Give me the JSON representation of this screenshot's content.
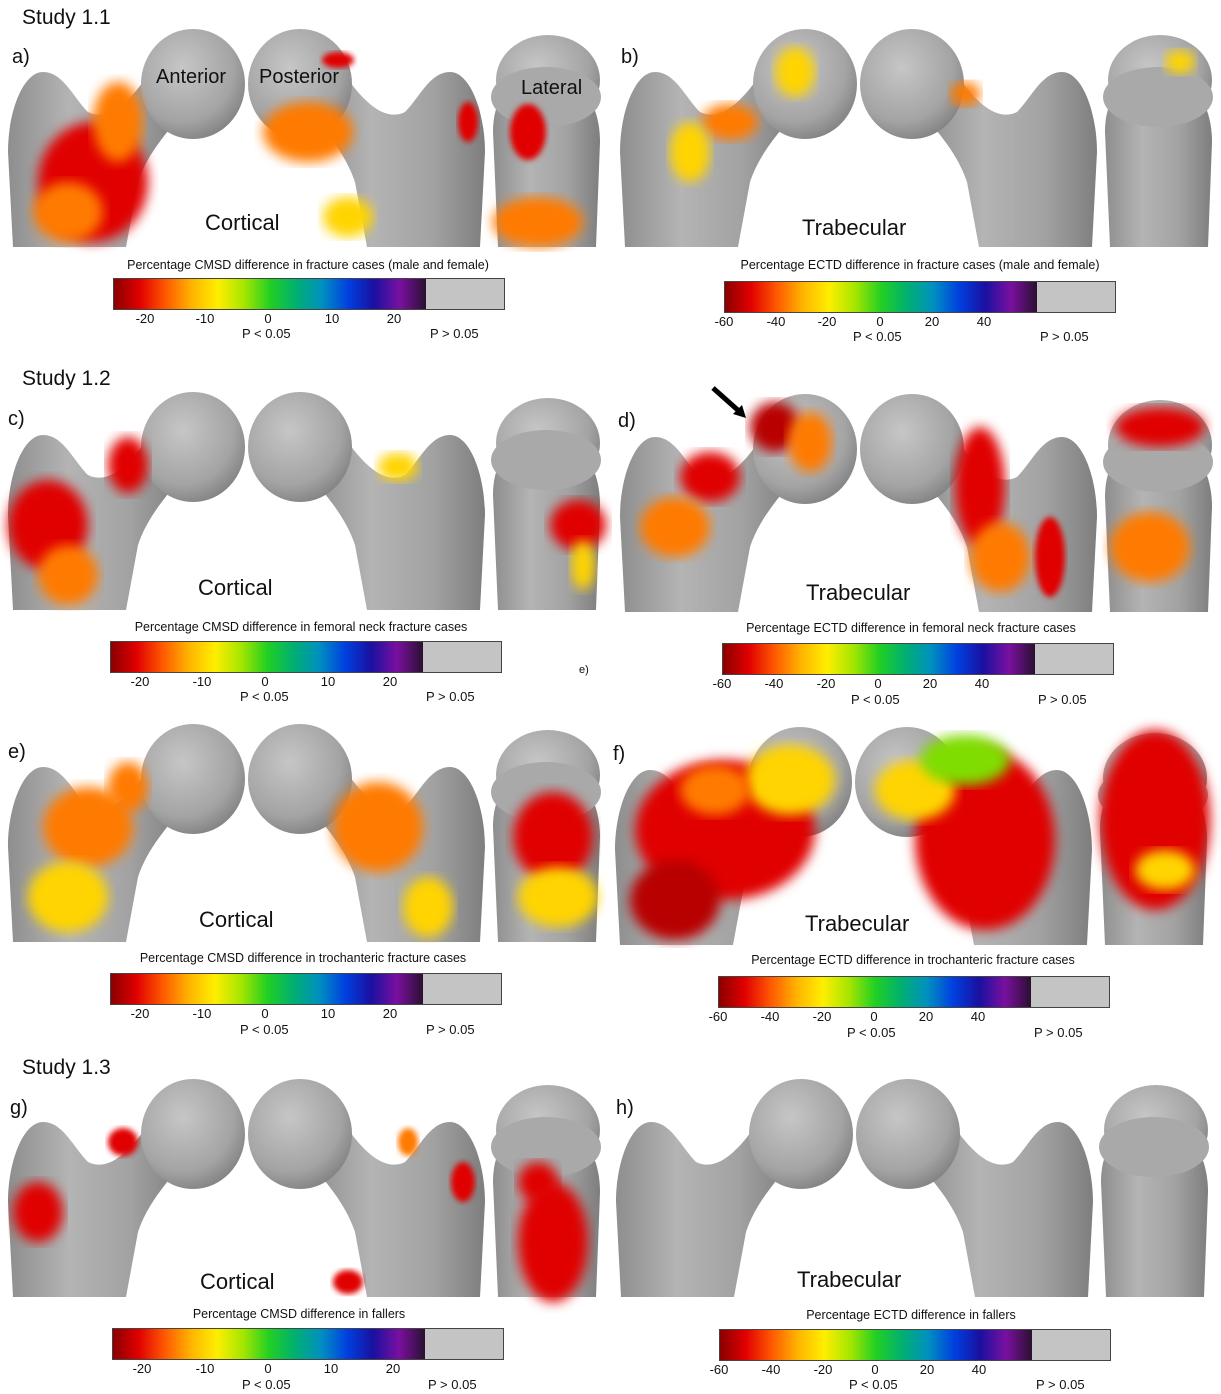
{
  "studies": [
    {
      "label": "Study 1.1"
    },
    {
      "label": "Study 1.2"
    },
    {
      "label": "Study 1.3"
    }
  ],
  "view_labels": {
    "anterior": "Anterior",
    "posterior": "Posterior",
    "lateral": "Lateral"
  },
  "stray_label": "e)",
  "panels": [
    {
      "letter": "a)",
      "bone": "Cortical",
      "bar_title": "Percentage CMSD difference in fracture cases (male and female)"
    },
    {
      "letter": "b)",
      "bone": "Trabecular",
      "bar_title": "Percentage ECTD difference in fracture cases (male and female)"
    },
    {
      "letter": "c)",
      "bone": "Cortical",
      "bar_title": "Percentage CMSD difference in femoral neck fracture cases"
    },
    {
      "letter": "d)",
      "bone": "Trabecular",
      "bar_title": "Percentage ECTD difference in femoral neck fracture cases"
    },
    {
      "letter": "e)",
      "bone": "Cortical",
      "bar_title": "Percentage CMSD difference in trochanteric fracture cases"
    },
    {
      "letter": "f)",
      "bone": "Trabecular",
      "bar_title": "Percentage ECTD difference in trochanteric fracture cases"
    },
    {
      "letter": "g)",
      "bone": "Cortical",
      "bar_title": "Percentage CMSD difference in fallers"
    },
    {
      "letter": "h)",
      "bone": "Trabecular",
      "bar_title": "Percentage ECTD difference in fallers"
    }
  ],
  "scale_cortical": {
    "ticks": [
      "-20",
      "-10",
      "0",
      "10",
      "20"
    ],
    "sig_low": "P < 0.05",
    "sig_high": "P > 0.05"
  },
  "scale_trabecular": {
    "ticks": [
      "-60",
      "-40",
      "-20",
      "0",
      "20",
      "40"
    ],
    "sig_low": "P < 0.05",
    "sig_high": "P > 0.05"
  },
  "colors": {
    "bone": "#a8a8a8",
    "nonsignificant": "#c4c4c4",
    "gradient": [
      "#8b0000",
      "#e10000",
      "#ff5a00",
      "#ffb400",
      "#ffee00",
      "#a6e600",
      "#22d022",
      "#00b070",
      "#0090c0",
      "#0040e0",
      "#1a10a0",
      "#7a10a0",
      "#2a1030"
    ]
  }
}
